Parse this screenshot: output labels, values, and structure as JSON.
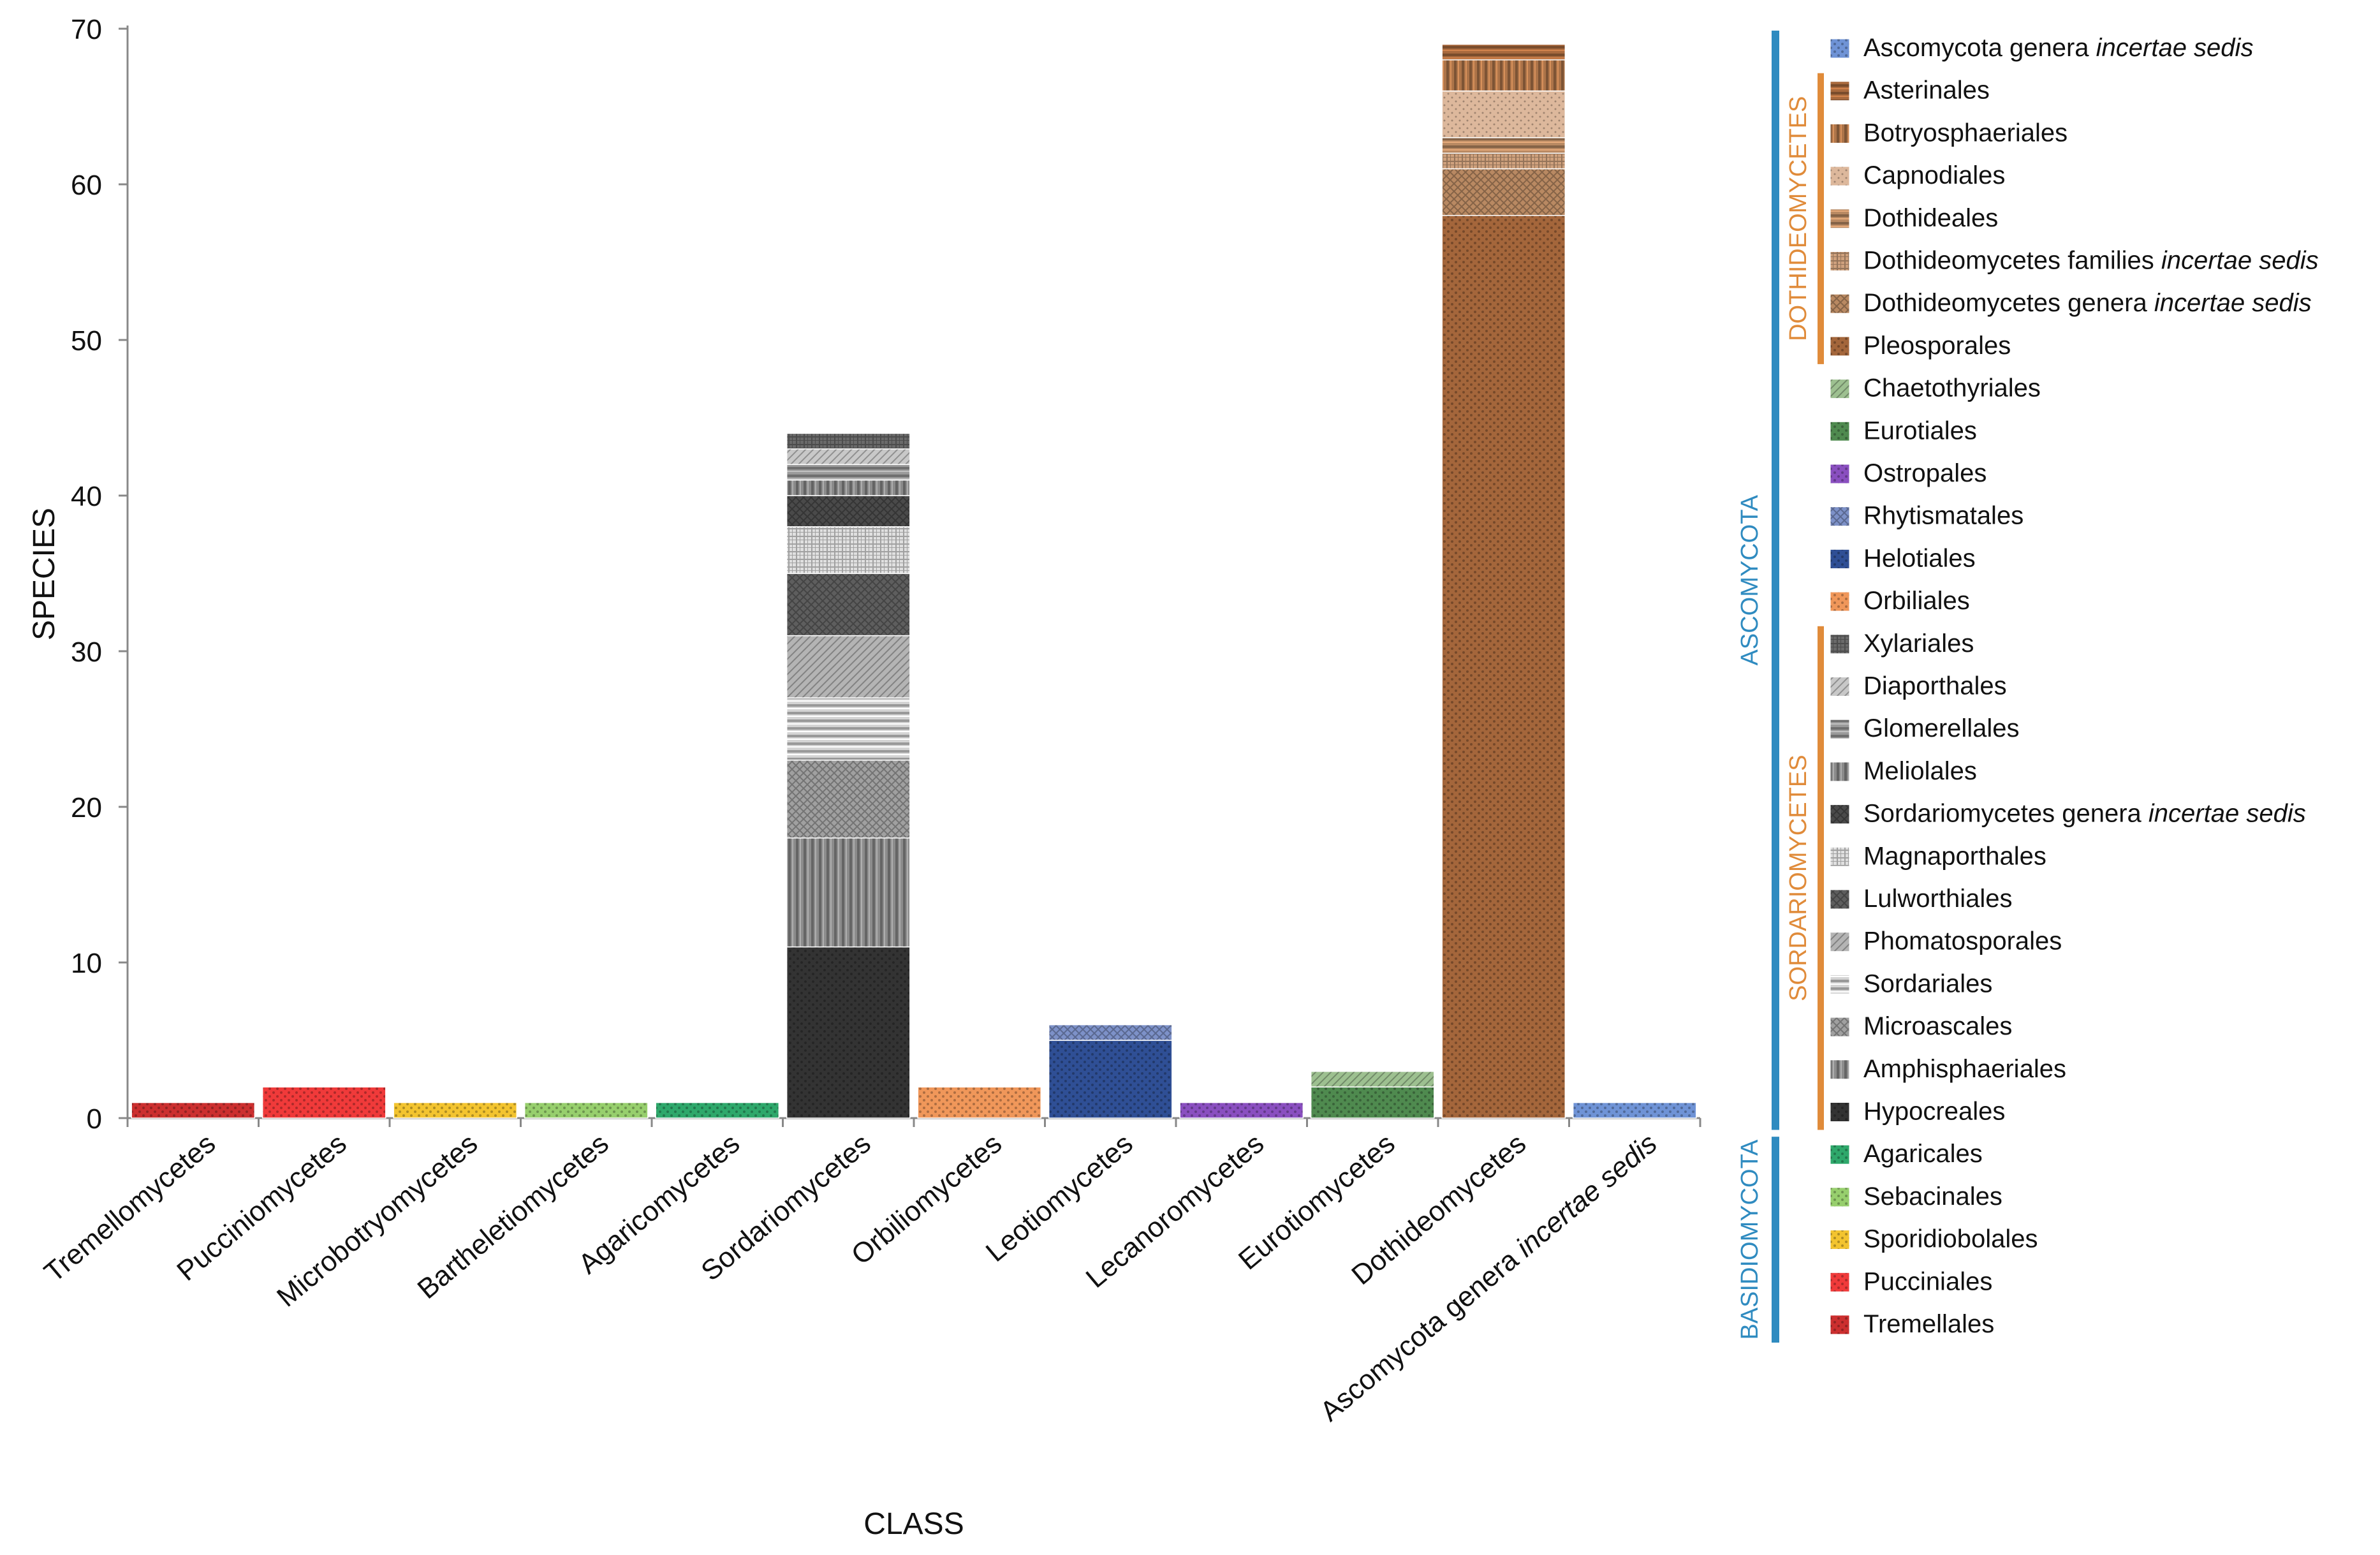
{
  "chart_data": {
    "type": "bar",
    "stacked": true,
    "title": "",
    "xlabel": "CLASS",
    "ylabel": "SPECIES",
    "ylim": [
      0,
      70
    ],
    "yticks": [
      0,
      10,
      20,
      30,
      40,
      50,
      60,
      70
    ],
    "categories": [
      {
        "label": "Tremellomycetes"
      },
      {
        "label": "Pucciniomycetes"
      },
      {
        "label": "Microbotryomycetes"
      },
      {
        "label": "Bartheletiomycetes"
      },
      {
        "label": "Agaricomycetes"
      },
      {
        "label": "Sordariomycetes"
      },
      {
        "label": "Orbiliomycetes"
      },
      {
        "label": "Leotiomycetes"
      },
      {
        "label": "Lecanoromycetes"
      },
      {
        "label": "Eurotiomycetes"
      },
      {
        "label": "Dothideomycetes"
      },
      {
        "label": "Ascomycota genera ",
        "label_italic": "incertae sedis"
      }
    ],
    "stacks": [
      [
        {
          "series": "Tremellales",
          "value": 1
        }
      ],
      [
        {
          "series": "Pucciniales",
          "value": 2
        }
      ],
      [
        {
          "series": "Sporidiobolales",
          "value": 1
        }
      ],
      [
        {
          "series": "Sebacinales",
          "value": 1
        }
      ],
      [
        {
          "series": "Agaricales",
          "value": 1
        }
      ],
      [
        {
          "series": "Hypocreales",
          "value": 11
        },
        {
          "series": "Amphisphaeriales",
          "value": 7
        },
        {
          "series": "Microascales",
          "value": 5
        },
        {
          "series": "Sordariales",
          "value": 4
        },
        {
          "series": "Phomatosporales",
          "value": 4
        },
        {
          "series": "Lulworthiales",
          "value": 4
        },
        {
          "series": "Magnaporthales",
          "value": 3
        },
        {
          "series": "Sordariomycetes genera incertae sedis",
          "value": 2
        },
        {
          "series": "Meliolales",
          "value": 1
        },
        {
          "series": "Glomerellales",
          "value": 1
        },
        {
          "series": "Diaporthales",
          "value": 1
        },
        {
          "series": "Xylariales",
          "value": 1
        }
      ],
      [
        {
          "series": "Orbiliales",
          "value": 2
        }
      ],
      [
        {
          "series": "Helotiales",
          "value": 5
        },
        {
          "series": "Rhytismatales",
          "value": 1
        }
      ],
      [
        {
          "series": "Ostropales",
          "value": 1
        }
      ],
      [
        {
          "series": "Eurotiales",
          "value": 2
        },
        {
          "series": "Chaetothyriales",
          "value": 1
        }
      ],
      [
        {
          "series": "Pleosporales",
          "value": 58
        },
        {
          "series": "Dothideomycetes genera incertae sedis",
          "value": 3
        },
        {
          "series": "Dothideomycetes families incertae sedis",
          "value": 1
        },
        {
          "series": "Dothideales",
          "value": 1
        },
        {
          "series": "Capnodiales",
          "value": 3
        },
        {
          "series": "Botryosphaeriales",
          "value": 2
        },
        {
          "series": "Asterinales",
          "value": 1
        }
      ],
      [
        {
          "series": "Ascomycota genera incertae sedis",
          "value": 1
        }
      ]
    ],
    "legend": {
      "placement": "right",
      "items": [
        {
          "key": "Ascomycota genera incertae sedis",
          "text": "Ascomycota genera ",
          "italic": "incertae sedis",
          "color": "#6f93d6",
          "pattern": "dots"
        },
        {
          "key": "Asterinales",
          "text": "Asterinales",
          "italic": "",
          "color": "#a8693d",
          "pattern": "hlines"
        },
        {
          "key": "Botryosphaeriales",
          "text": "Botryosphaeriales",
          "italic": "",
          "color": "#ad7449",
          "pattern": "vlines"
        },
        {
          "key": "Capnodiales",
          "text": "Capnodiales",
          "italic": "",
          "color": "#ddb89c",
          "pattern": "finedots"
        },
        {
          "key": "Dothideales",
          "text": "Dothideales",
          "italic": "",
          "color": "#b98962",
          "pattern": "hlines"
        },
        {
          "key": "Dothideomycetes families incertae sedis",
          "text": "Dothideomycetes families ",
          "italic": "incertae sedis",
          "color": "#cfa17d",
          "pattern": "grid"
        },
        {
          "key": "Dothideomycetes genera incertae sedis",
          "text": "Dothideomycetes genera ",
          "italic": "incertae sedis",
          "color": "#b98962",
          "pattern": "cross"
        },
        {
          "key": "Pleosporales",
          "text": "Pleosporales",
          "italic": "",
          "color": "#a4663b",
          "pattern": "dots"
        },
        {
          "key": "Chaetothyriales",
          "text": "Chaetothyriales",
          "italic": "",
          "color": "#9dc090",
          "pattern": "diag"
        },
        {
          "key": "Eurotiales",
          "text": "Eurotiales",
          "italic": "",
          "color": "#4f8a4f",
          "pattern": "dots"
        },
        {
          "key": "Ostropales",
          "text": "Ostropales",
          "italic": "",
          "color": "#8a4fc0",
          "pattern": "dots"
        },
        {
          "key": "Rhytismatales",
          "text": "Rhytismatales",
          "italic": "",
          "color": "#7d91c8",
          "pattern": "cross"
        },
        {
          "key": "Helotiales",
          "text": "Helotiales",
          "italic": "",
          "color": "#2f4f95",
          "pattern": "dots"
        },
        {
          "key": "Orbiliales",
          "text": "Orbiliales",
          "italic": "",
          "color": "#f0975a",
          "pattern": "dots"
        },
        {
          "key": "Xylariales",
          "text": "Xylariales",
          "italic": "",
          "color": "#6a6a6a",
          "pattern": "grid"
        },
        {
          "key": "Diaporthales",
          "text": "Diaporthales",
          "italic": "",
          "color": "#c8c8c8",
          "pattern": "diag"
        },
        {
          "key": "Glomerellales",
          "text": "Glomerellales",
          "italic": "",
          "color": "#9a9a9a",
          "pattern": "hlines"
        },
        {
          "key": "Meliolales",
          "text": "Meliolales",
          "italic": "",
          "color": "#8a8a8a",
          "pattern": "vlines"
        },
        {
          "key": "Sordariomycetes genera incertae sedis",
          "text": "Sordariomycetes genera ",
          "italic": "incertae sedis",
          "color": "#4a4a4a",
          "pattern": "cross"
        },
        {
          "key": "Magnaporthales",
          "text": "Magnaporthales",
          "italic": "",
          "color": "#e0e0e0",
          "pattern": "grid"
        },
        {
          "key": "Lulworthiales",
          "text": "Lulworthiales",
          "italic": "",
          "color": "#5e5e5e",
          "pattern": "cross"
        },
        {
          "key": "Phomatosporales",
          "text": "Phomatosporales",
          "italic": "",
          "color": "#b4b4b4",
          "pattern": "diag"
        },
        {
          "key": "Sordariales",
          "text": "Sordariales",
          "italic": "",
          "color": "#d4d4d4",
          "pattern": "hlines"
        },
        {
          "key": "Microascales",
          "text": "Microascales",
          "italic": "",
          "color": "#a0a0a0",
          "pattern": "cross"
        },
        {
          "key": "Amphisphaeriales",
          "text": "Amphisphaeriales",
          "italic": "",
          "color": "#8c8c8c",
          "pattern": "vlines"
        },
        {
          "key": "Hypocreales",
          "text": "Hypocreales",
          "italic": "",
          "color": "#333333",
          "pattern": "dots"
        },
        {
          "key": "Agaricales",
          "text": "Agaricales",
          "italic": "",
          "color": "#2ea86b",
          "pattern": "dots"
        },
        {
          "key": "Sebacinales",
          "text": "Sebacinales",
          "italic": "",
          "color": "#97cf6d",
          "pattern": "dots"
        },
        {
          "key": "Sporidiobolales",
          "text": "Sporidiobolales",
          "italic": "",
          "color": "#f3c42f",
          "pattern": "dots"
        },
        {
          "key": "Pucciniales",
          "text": "Pucciniales",
          "italic": "",
          "color": "#f03a3a",
          "pattern": "dots"
        },
        {
          "key": "Tremellales",
          "text": "Tremellales",
          "italic": "",
          "color": "#cc2f2f",
          "pattern": "dots"
        }
      ],
      "groups": [
        {
          "label": "ASCOMYCOTA",
          "color": "#2f8bc0",
          "first": 0,
          "last": 25,
          "level": "phylum"
        },
        {
          "label": "BASIDIOMYCOTA",
          "color": "#2f8bc0",
          "first": 26,
          "last": 30,
          "level": "phylum"
        },
        {
          "label": "DOTHIDEOMYCETES",
          "color": "#e08b3a",
          "first": 1,
          "last": 7,
          "level": "class"
        },
        {
          "label": "SORDARIOMYCETES",
          "color": "#e08b3a",
          "first": 14,
          "last": 25,
          "level": "class"
        }
      ]
    }
  }
}
